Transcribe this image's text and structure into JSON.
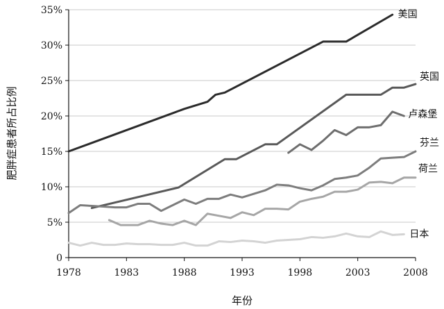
{
  "chart_data": {
    "type": "line",
    "xlabel": "年份",
    "ylabel": "肥胖症患者所占比例",
    "xlim": [
      1978,
      2008
    ],
    "ylim": [
      0,
      35
    ],
    "x_ticks": [
      "1978",
      "1983",
      "1988",
      "1993",
      "1998",
      "2003",
      "2008"
    ],
    "y_ticks": [
      "0",
      "5%",
      "10%",
      "15%",
      "20%",
      "25%",
      "30%",
      "35%"
    ],
    "grid": "horizontal",
    "series": [
      {
        "name": "美国",
        "color": "#2b2b2b",
        "points": [
          [
            1978,
            15.0
          ],
          [
            1988,
            21.0
          ],
          [
            1990,
            22.0
          ],
          [
            1990.7,
            23.0
          ],
          [
            1991.5,
            23.3
          ],
          [
            2000,
            30.5
          ],
          [
            2002,
            30.5
          ],
          [
            2006,
            34.3
          ]
        ]
      },
      {
        "name": "英国",
        "color": "#595959",
        "points": [
          [
            1980,
            7.0
          ],
          [
            1987.5,
            9.9
          ],
          [
            1991.5,
            13.9
          ],
          [
            1992.5,
            13.9
          ],
          [
            1995,
            16.0
          ],
          [
            1996,
            16.0
          ],
          [
            2002,
            23.0
          ],
          [
            2005,
            23.0
          ],
          [
            2006,
            24.0
          ],
          [
            2007,
            24.0
          ],
          [
            2008,
            24.5
          ]
        ]
      },
      {
        "name": "卢森堡",
        "color": "#6e6e6e",
        "points": [
          [
            1997,
            14.8
          ],
          [
            1998,
            16.0
          ],
          [
            1999,
            15.2
          ],
          [
            2000,
            16.5
          ],
          [
            2001,
            18.0
          ],
          [
            2002,
            17.3
          ],
          [
            2003,
            18.4
          ],
          [
            2004,
            18.4
          ],
          [
            2005,
            18.7
          ],
          [
            2006,
            20.6
          ],
          [
            2007,
            20.0
          ]
        ]
      },
      {
        "name": "芬兰",
        "color": "#7d7d7d",
        "points": [
          [
            1978,
            6.3
          ],
          [
            1979,
            7.4
          ],
          [
            1980,
            7.3
          ],
          [
            1981,
            7.2
          ],
          [
            1982,
            7.1
          ],
          [
            1983,
            7.1
          ],
          [
            1984,
            7.6
          ],
          [
            1985,
            7.6
          ],
          [
            1986,
            6.6
          ],
          [
            1987,
            7.4
          ],
          [
            1988,
            8.2
          ],
          [
            1989,
            7.6
          ],
          [
            1990,
            8.3
          ],
          [
            1991,
            8.3
          ],
          [
            1992,
            8.9
          ],
          [
            1993,
            8.5
          ],
          [
            1994,
            9.0
          ],
          [
            1995,
            9.5
          ],
          [
            1996,
            10.3
          ],
          [
            1997,
            10.2
          ],
          [
            1998,
            9.8
          ],
          [
            1999,
            9.5
          ],
          [
            2000,
            10.2
          ],
          [
            2001,
            11.1
          ],
          [
            2002,
            11.3
          ],
          [
            2003,
            11.6
          ],
          [
            2004,
            12.7
          ],
          [
            2005,
            14.0
          ],
          [
            2006,
            14.1
          ],
          [
            2007,
            14.2
          ],
          [
            2008,
            15.0
          ]
        ]
      },
      {
        "name": "荷兰",
        "color": "#a6a6a6",
        "points": [
          [
            1981.5,
            5.3
          ],
          [
            1982.5,
            4.6
          ],
          [
            1984,
            4.6
          ],
          [
            1985,
            5.2
          ],
          [
            1986,
            4.8
          ],
          [
            1987,
            4.6
          ],
          [
            1988,
            5.2
          ],
          [
            1989,
            4.6
          ],
          [
            1990,
            6.2
          ],
          [
            1991,
            5.9
          ],
          [
            1992,
            5.6
          ],
          [
            1993,
            6.4
          ],
          [
            1994,
            6.0
          ],
          [
            1995,
            6.9
          ],
          [
            1996,
            6.9
          ],
          [
            1997,
            6.8
          ],
          [
            1998,
            7.9
          ],
          [
            1999,
            8.3
          ],
          [
            2000,
            8.6
          ],
          [
            2001,
            9.3
          ],
          [
            2002,
            9.3
          ],
          [
            2003,
            9.6
          ],
          [
            2004,
            10.6
          ],
          [
            2005,
            10.7
          ],
          [
            2006,
            10.5
          ],
          [
            2007,
            11.3
          ],
          [
            2008,
            11.3
          ]
        ]
      },
      {
        "name": "日本",
        "color": "#d3d3d3",
        "points": [
          [
            1978,
            2.1
          ],
          [
            1979,
            1.7
          ],
          [
            1980,
            2.1
          ],
          [
            1981,
            1.8
          ],
          [
            1982,
            1.8
          ],
          [
            1983,
            2.0
          ],
          [
            1984,
            1.9
          ],
          [
            1985,
            1.9
          ],
          [
            1986,
            1.8
          ],
          [
            1987,
            1.8
          ],
          [
            1988,
            2.1
          ],
          [
            1989,
            1.7
          ],
          [
            1990,
            1.7
          ],
          [
            1991,
            2.3
          ],
          [
            1992,
            2.2
          ],
          [
            1993,
            2.4
          ],
          [
            1994,
            2.3
          ],
          [
            1995,
            2.1
          ],
          [
            1996,
            2.4
          ],
          [
            1997,
            2.5
          ],
          [
            1998,
            2.6
          ],
          [
            1999,
            2.9
          ],
          [
            2000,
            2.8
          ],
          [
            2001,
            3.0
          ],
          [
            2002,
            3.4
          ],
          [
            2003,
            3.0
          ],
          [
            2004,
            2.9
          ],
          [
            2005,
            3.7
          ],
          [
            2006,
            3.2
          ],
          [
            2007,
            3.3
          ]
        ]
      }
    ]
  }
}
